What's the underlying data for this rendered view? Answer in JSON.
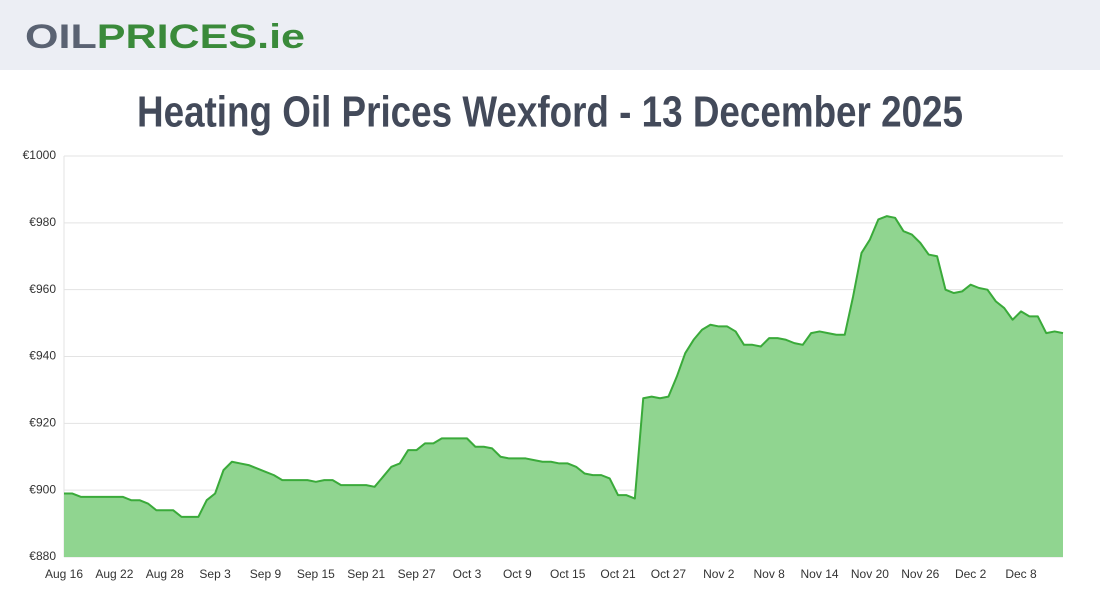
{
  "header": {
    "logo_dark": "OIL",
    "logo_green": "PRICES.ie"
  },
  "chart_data": {
    "type": "area",
    "title": "Heating Oil Prices Wexford - 13 December 2025",
    "categories": [
      "Aug 16",
      null,
      null,
      null,
      null,
      null,
      "Aug 22",
      null,
      null,
      null,
      null,
      null,
      "Aug 28",
      null,
      null,
      null,
      null,
      null,
      "Sep 3",
      null,
      null,
      null,
      null,
      null,
      "Sep 9",
      null,
      null,
      null,
      null,
      null,
      "Sep 15",
      null,
      null,
      null,
      null,
      null,
      "Sep 21",
      null,
      null,
      null,
      null,
      null,
      "Sep 27",
      null,
      null,
      null,
      null,
      null,
      "Oct 3",
      null,
      null,
      null,
      null,
      null,
      "Oct 9",
      null,
      null,
      null,
      null,
      null,
      "Oct 15",
      null,
      null,
      null,
      null,
      null,
      "Oct 21",
      null,
      null,
      null,
      null,
      null,
      "Oct 27",
      null,
      null,
      null,
      null,
      null,
      "Nov 2",
      null,
      null,
      null,
      null,
      null,
      "Nov 8",
      null,
      null,
      null,
      null,
      null,
      "Nov 14",
      null,
      null,
      null,
      null,
      null,
      "Nov 20",
      null,
      null,
      null,
      null,
      null,
      "Nov 26",
      null,
      null,
      null,
      null,
      null,
      "Dec 2",
      null,
      null,
      null,
      null,
      null,
      "Dec 8",
      null,
      null,
      null,
      null,
      null
    ],
    "values": [
      899,
      899,
      898,
      898,
      898,
      898,
      898,
      898,
      897,
      897,
      896,
      894,
      894,
      894,
      892,
      892,
      892,
      897,
      899,
      906,
      908.5,
      908,
      907.5,
      906.5,
      905.5,
      904.5,
      903,
      903,
      903,
      903,
      902.5,
      903,
      903,
      901.5,
      901.5,
      901.5,
      901.5,
      901,
      904,
      907,
      908,
      912,
      912,
      914,
      914,
      915.5,
      915.5,
      915.5,
      915.5,
      913,
      913,
      912.5,
      910,
      909.5,
      909.5,
      909.5,
      909,
      908.5,
      908.5,
      908,
      908,
      907,
      905,
      904.5,
      904.5,
      903.5,
      898.5,
      898.5,
      897.5,
      927.5,
      928,
      927.5,
      928,
      934,
      941,
      945,
      948,
      949.5,
      949,
      949,
      947.5,
      943.5,
      943.5,
      943,
      945.5,
      945.5,
      945,
      944,
      943.5,
      947,
      947.5,
      947,
      946.5,
      946.5,
      958,
      971,
      975,
      981,
      982,
      981.5,
      977.5,
      976.5,
      974,
      970.5,
      970,
      960,
      959,
      959.5,
      961.5,
      960.5,
      960,
      956.5,
      954.5,
      951,
      953.5,
      952,
      952,
      947,
      947.5,
      947
    ],
    "color": "#3aaa3a",
    "fill": "#90d590",
    "ylim": [
      880,
      1000
    ],
    "yticks": [
      {
        "value": 880,
        "label": "€880"
      },
      {
        "value": 900,
        "label": "€900"
      },
      {
        "value": 920,
        "label": "€920"
      },
      {
        "value": 940,
        "label": "€940"
      },
      {
        "value": 960,
        "label": "€960"
      },
      {
        "value": 980,
        "label": "€980"
      },
      {
        "value": 1000,
        "label": "€1000"
      }
    ],
    "grid": true
  }
}
